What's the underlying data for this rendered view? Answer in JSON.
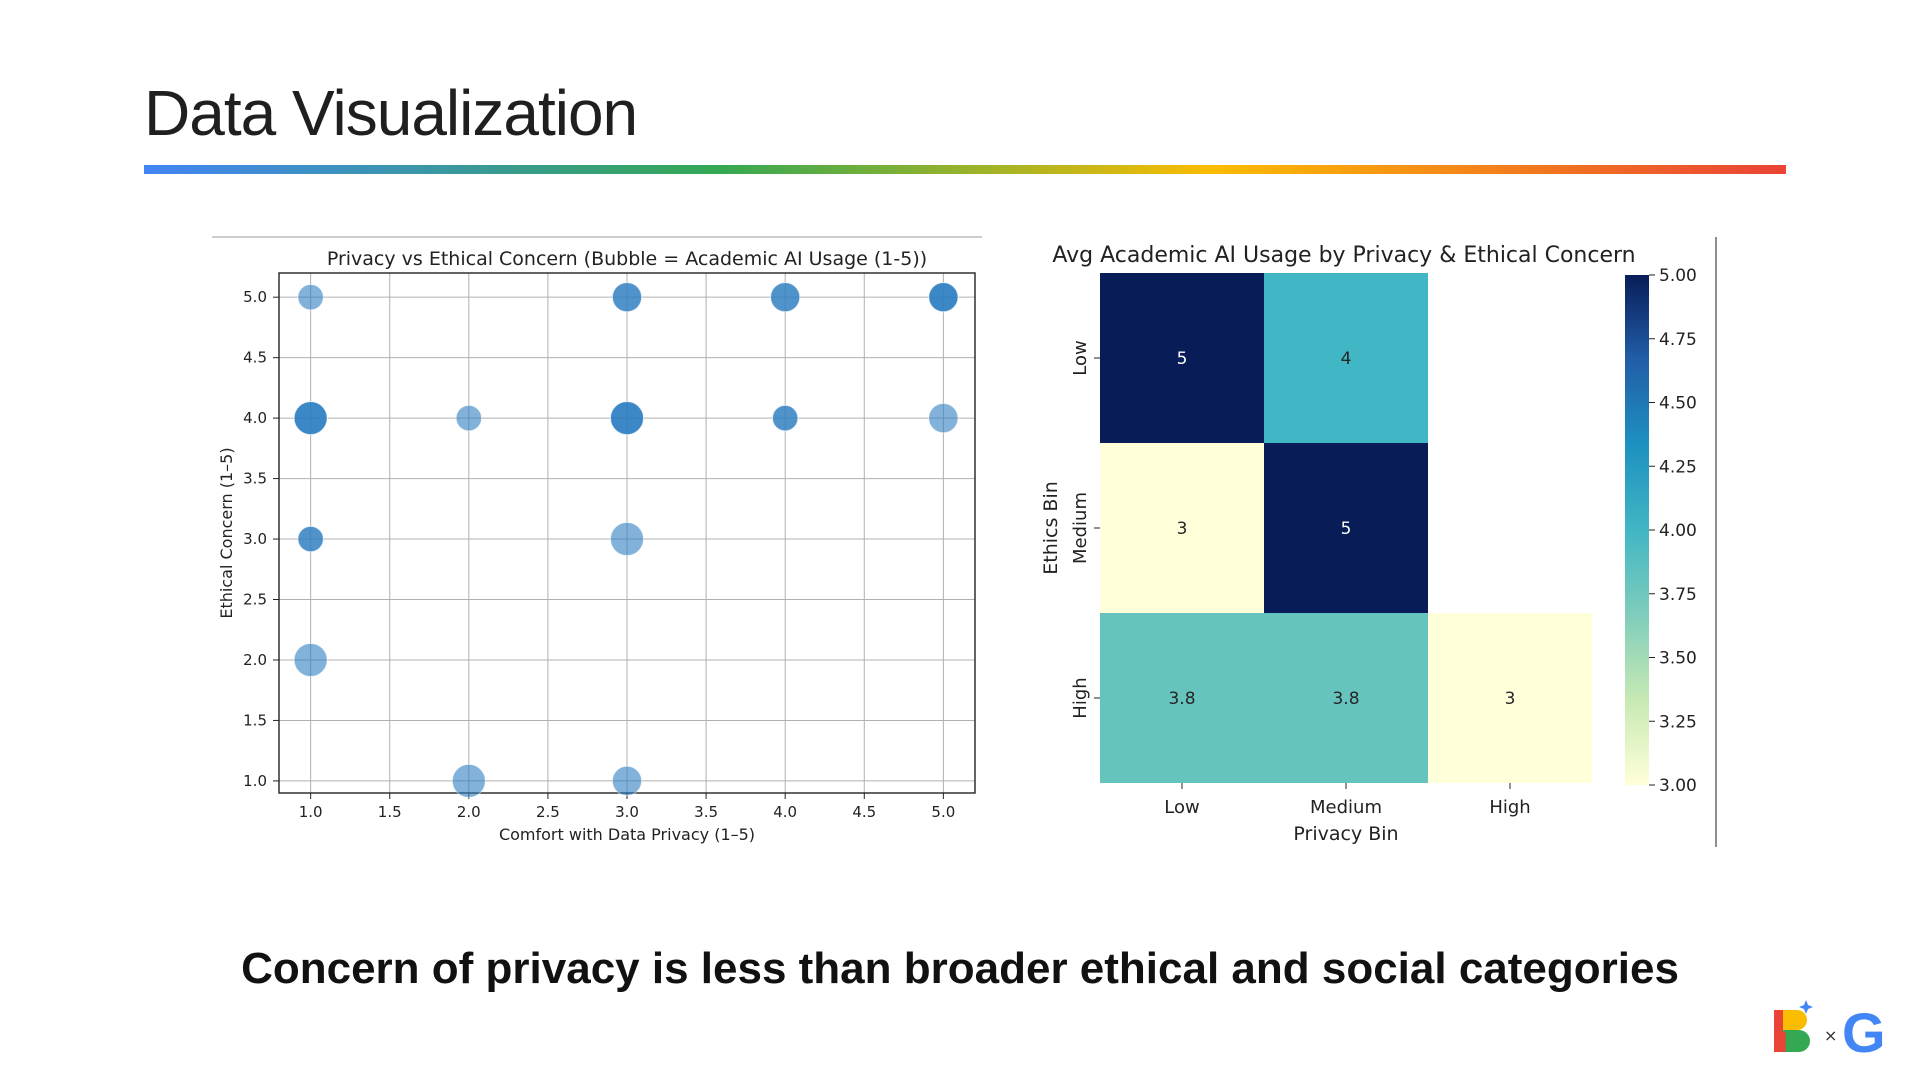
{
  "slide": {
    "title": "Data Visualization",
    "caption": "Concern of privacy is less than broader ethical and social categories",
    "logo_separator": "×",
    "logo_letter_g": "G"
  },
  "colors": {
    "bubble": "#2f7fc1",
    "grid": "#b0b0b0",
    "heatmap_scale": [
      "#ffffd9",
      "#c7e9b4",
      "#7fcdbb",
      "#41b6c4",
      "#1d91c0",
      "#225ea8",
      "#081d58"
    ]
  },
  "chart_data": [
    {
      "type": "scatter",
      "title": "Privacy vs Ethical Concern (Bubble = Academic AI Usage (1-5))",
      "xlabel": "Comfort with Data Privacy (1–5)",
      "ylabel": "Ethical Concern (1–5)",
      "xlim": [
        0.8,
        5.2
      ],
      "ylim": [
        0.9,
        5.2
      ],
      "xticks": [
        "1.0",
        "1.5",
        "2.0",
        "2.5",
        "3.0",
        "3.5",
        "4.0",
        "4.5",
        "5.0"
      ],
      "yticks": [
        "1.0",
        "1.5",
        "2.0",
        "2.5",
        "3.0",
        "3.5",
        "4.0",
        "4.5",
        "5.0"
      ],
      "grid": true,
      "points": [
        {
          "x": 1,
          "y": 5,
          "size": 3,
          "count": 1
        },
        {
          "x": 3,
          "y": 5,
          "size": 4,
          "count": 2
        },
        {
          "x": 4,
          "y": 5,
          "size": 4,
          "count": 2
        },
        {
          "x": 5,
          "y": 5,
          "size": 4,
          "count": 3
        },
        {
          "x": 1,
          "y": 4,
          "size": 5,
          "count": 3
        },
        {
          "x": 2,
          "y": 4,
          "size": 3,
          "count": 1
        },
        {
          "x": 3,
          "y": 4,
          "size": 5,
          "count": 3
        },
        {
          "x": 4,
          "y": 4,
          "size": 3,
          "count": 2
        },
        {
          "x": 5,
          "y": 4,
          "size": 4,
          "count": 1
        },
        {
          "x": 1,
          "y": 3,
          "size": 3,
          "count": 2
        },
        {
          "x": 3,
          "y": 3,
          "size": 5,
          "count": 1
        },
        {
          "x": 1,
          "y": 2,
          "size": 5,
          "count": 1
        },
        {
          "x": 2,
          "y": 1,
          "size": 5,
          "count": 1
        },
        {
          "x": 3,
          "y": 1,
          "size": 4,
          "count": 1
        }
      ]
    },
    {
      "type": "heatmap",
      "title": "Avg Academic AI Usage by Privacy & Ethical Concern",
      "xlabel": "Privacy Bin",
      "ylabel": "Ethics Bin",
      "x_categories": [
        "Low",
        "Medium",
        "High"
      ],
      "y_categories": [
        "Low",
        "Medium",
        "High"
      ],
      "values": [
        [
          5,
          4,
          null
        ],
        [
          3,
          5,
          null
        ],
        [
          3.8,
          3.8,
          3
        ]
      ],
      "cell_labels": [
        [
          "5",
          "4",
          ""
        ],
        [
          "3",
          "5",
          ""
        ],
        [
          "3.8",
          "3.8",
          "3"
        ]
      ],
      "vmin": 3.0,
      "vmax": 5.0,
      "colorbar_ticks": [
        "3.00",
        "3.25",
        "3.50",
        "3.75",
        "4.00",
        "4.25",
        "4.50",
        "4.75",
        "5.00"
      ],
      "colormap": "YlGnBu"
    }
  ]
}
